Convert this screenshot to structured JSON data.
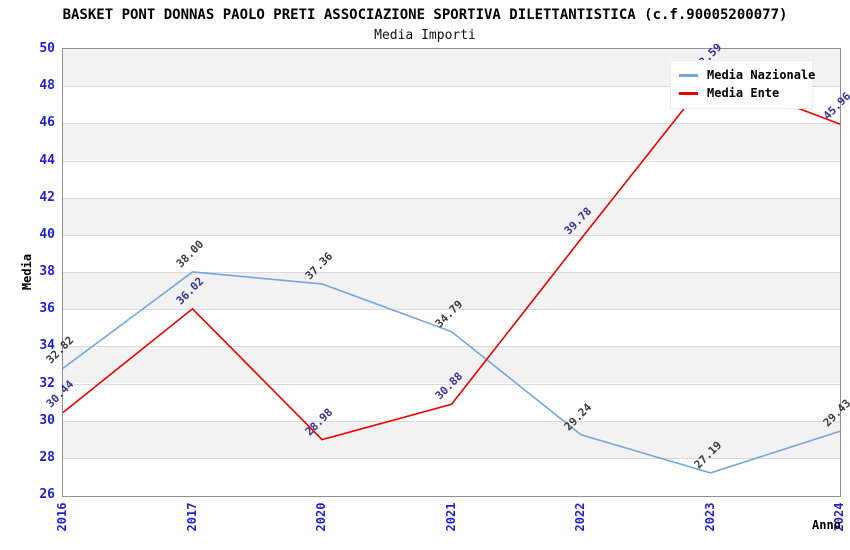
{
  "chart_data": {
    "type": "line",
    "title": "BASKET PONT DONNAS PAOLO PRETI ASSOCIAZIONE SPORTIVA DILETTANTISTICA (c.f.90005200077)",
    "subtitle": "Media Importi",
    "xlabel": "Anno",
    "ylabel": "Media",
    "categories": [
      "2016",
      "2017",
      "2020",
      "2021",
      "2022",
      "2023",
      "2024"
    ],
    "series": [
      {
        "name": "Media Nazionale",
        "color": "#74a7dc",
        "label_color": "#3c3c3c",
        "values": [
          32.82,
          38.0,
          37.36,
          34.79,
          29.24,
          27.19,
          29.43
        ]
      },
      {
        "name": "Media Ente",
        "color": "#ee0000",
        "label_color": "#333399",
        "values": [
          30.44,
          36.02,
          28.98,
          30.88,
          39.78,
          48.59,
          45.96
        ]
      }
    ],
    "ylim": [
      26,
      50
    ],
    "yticks": [
      26,
      28,
      30,
      32,
      34,
      36,
      38,
      40,
      42,
      44,
      46,
      48,
      50
    ],
    "value_decimals": 2,
    "grid": "horizontal-bands",
    "band_color": "#f2f2f2",
    "gridline_color": "#dbdbdb",
    "tick_label_color": "#2222cc",
    "legend_position": "top-right"
  }
}
